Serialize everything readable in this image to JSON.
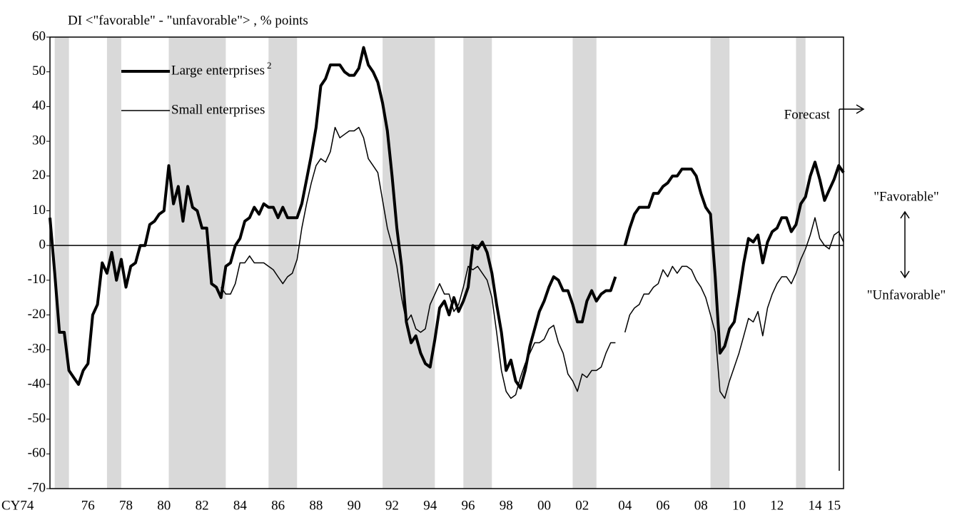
{
  "chart_data": {
    "type": "line",
    "y_label": "DI <\"favorable\" - \"unfavorable\"> , % points",
    "annotations": {
      "forecast": "Forecast",
      "favorable": "\"Favorable\"",
      "unfavorable": "\"Unfavorable\""
    },
    "categories": [
      "CY74",
      null,
      null,
      null,
      null,
      null,
      null,
      null,
      "76",
      null,
      null,
      null,
      null,
      null,
      null,
      null,
      "78",
      null,
      null,
      null,
      null,
      null,
      null,
      null,
      "80",
      null,
      null,
      null,
      null,
      null,
      null,
      null,
      "82",
      null,
      null,
      null,
      null,
      null,
      null,
      null,
      "84",
      null,
      null,
      null,
      null,
      null,
      null,
      null,
      "86",
      null,
      null,
      null,
      null,
      null,
      null,
      null,
      "88",
      null,
      null,
      null,
      null,
      null,
      null,
      null,
      "90",
      null,
      null,
      null,
      null,
      null,
      null,
      null,
      "92",
      null,
      null,
      null,
      null,
      null,
      null,
      null,
      "94",
      null,
      null,
      null,
      null,
      null,
      null,
      null,
      "96",
      null,
      null,
      null,
      null,
      null,
      null,
      null,
      "98",
      null,
      null,
      null,
      null,
      null,
      null,
      null,
      "00",
      null,
      null,
      null,
      null,
      null,
      null,
      null,
      "02",
      null,
      null,
      null,
      null,
      null,
      null,
      null,
      null,
      "04",
      null,
      null,
      null,
      null,
      null,
      null,
      null,
      "06",
      null,
      null,
      null,
      null,
      null,
      null,
      null,
      "08",
      null,
      null,
      null,
      null,
      null,
      null,
      null,
      "10",
      null,
      null,
      null,
      null,
      null,
      null,
      null,
      "12",
      null,
      null,
      null,
      null,
      null,
      null,
      null,
      "14",
      null,
      null,
      null,
      "15",
      null,
      null
    ],
    "series": [
      {
        "name": "Large enterprises",
        "superscript": "2",
        "color": "#000000",
        "width": 4,
        "values": [
          8,
          -8,
          -25,
          -25,
          -36,
          -38,
          -40,
          -36,
          -34,
          -20,
          -17,
          -5,
          -8,
          -2,
          -10,
          -4,
          -12,
          -6,
          -5,
          0,
          0,
          6,
          7,
          9,
          10,
          23,
          12,
          17,
          7,
          17,
          11,
          10,
          5,
          5,
          -11,
          -12,
          -15,
          -6,
          -5,
          0,
          2,
          7,
          8,
          11,
          9,
          12,
          11,
          11,
          8,
          11,
          8,
          8,
          8,
          12,
          19,
          26,
          34,
          46,
          48,
          52,
          52,
          52,
          50,
          49,
          49,
          51,
          57,
          52,
          50,
          47,
          41,
          33,
          20,
          5,
          -6,
          -22,
          -28,
          -26,
          -31,
          -34,
          -35,
          -27,
          -18,
          -16,
          -20,
          -15,
          -19,
          -16,
          -12,
          0,
          -1,
          1,
          -2,
          -8,
          -17,
          -25,
          -36,
          -33,
          -39,
          -41,
          -36,
          -29,
          -24,
          -19,
          -16,
          -12,
          -9,
          -10,
          -13,
          -13,
          -17,
          -22,
          -22,
          -16,
          -13,
          -16,
          -14,
          -13,
          -13,
          -9,
          null,
          0,
          5,
          9,
          11,
          11,
          11,
          15,
          15,
          17,
          18,
          20,
          20,
          22,
          22,
          22,
          20,
          15,
          11,
          9,
          -9,
          -31,
          -29,
          -24,
          -22,
          -14,
          -5,
          2,
          1,
          3,
          -5,
          1,
          4,
          5,
          8,
          8,
          4,
          6,
          12,
          14,
          20,
          24,
          19,
          13,
          16,
          19,
          23,
          21
        ]
      },
      {
        "name": "Small enterprises",
        "color": "#000000",
        "width": 1.5,
        "values": [
          null,
          null,
          null,
          null,
          null,
          null,
          null,
          null,
          null,
          null,
          null,
          null,
          null,
          null,
          null,
          null,
          null,
          null,
          null,
          null,
          null,
          null,
          null,
          null,
          null,
          null,
          null,
          null,
          null,
          null,
          null,
          null,
          null,
          null,
          null,
          null,
          -12,
          -14,
          -14,
          -11,
          -5,
          -5,
          -3,
          -5,
          -5,
          -5,
          -6,
          -7,
          -9,
          -11,
          -9,
          -8,
          -4,
          5,
          12,
          18,
          23,
          25,
          24,
          27,
          34,
          31,
          32,
          33,
          33,
          34,
          31,
          25,
          23,
          21,
          13,
          5,
          0,
          -6,
          -15,
          -22,
          -20,
          -24,
          -25,
          -24,
          -17,
          -14,
          -11,
          -14,
          -14,
          -19,
          -17,
          -12,
          -6,
          -7,
          -6,
          -8,
          -10,
          -15,
          -25,
          -36,
          -42,
          -44,
          -43,
          -38,
          -34,
          -31,
          -28,
          -28,
          -27,
          -24,
          -23,
          -28,
          -31,
          -37,
          -39,
          -42,
          -37,
          -38,
          -36,
          -36,
          -35,
          -31,
          -28,
          -28,
          null,
          -25,
          -20,
          -18,
          -17,
          -14,
          -14,
          -12,
          -11,
          -7,
          -9,
          -6,
          -8,
          -6,
          -6,
          -7,
          -10,
          -12,
          -15,
          -20,
          -25,
          -42,
          -44,
          -39,
          -35,
          -31,
          -26,
          -21,
          -22,
          -19,
          -26,
          -18,
          -14,
          -11,
          -9,
          -9,
          -11,
          -8,
          -4,
          -1,
          3,
          8,
          2,
          0,
          -1,
          3,
          4,
          1
        ]
      }
    ],
    "shaded_ranges": [
      [
        1,
        4
      ],
      [
        12,
        15
      ],
      [
        25,
        37
      ],
      [
        46,
        52
      ],
      [
        70,
        81
      ],
      [
        87,
        93
      ],
      [
        110,
        115
      ],
      [
        139,
        143
      ],
      [
        157,
        159
      ]
    ],
    "shade_color": "#d9d9d9",
    "ylim": [
      -70,
      60
    ],
    "yticks": [
      -70,
      -60,
      -50,
      -40,
      -30,
      -20,
      -10,
      0,
      10,
      20,
      30,
      40,
      50,
      60
    ],
    "zero_line": true
  }
}
